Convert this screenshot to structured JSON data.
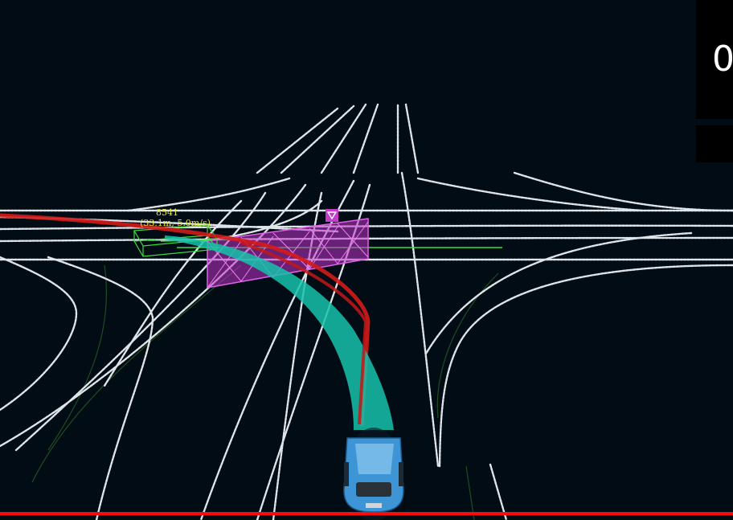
{
  "hud": {
    "speed_value": "0"
  },
  "obstacle": {
    "id": "8541",
    "info": "(33.1m, 5.0m/s)"
  },
  "colors": {
    "background": "#020c14",
    "lane_line": "#dfe4e8",
    "lane_faint": "#1f4d22",
    "planned_path": "#18c2aa",
    "reference_line": "#d41a1a",
    "stop_fence": "#d040d8",
    "obstacle_box": "#3edb3e",
    "obstacle_label": "#e6e63c",
    "progress_bar": "#ff0a0a",
    "ego_vehicle": "#3d95d6"
  },
  "icons": {
    "stop_marker": "inverted-triangle-icon",
    "ego": "car-icon"
  }
}
